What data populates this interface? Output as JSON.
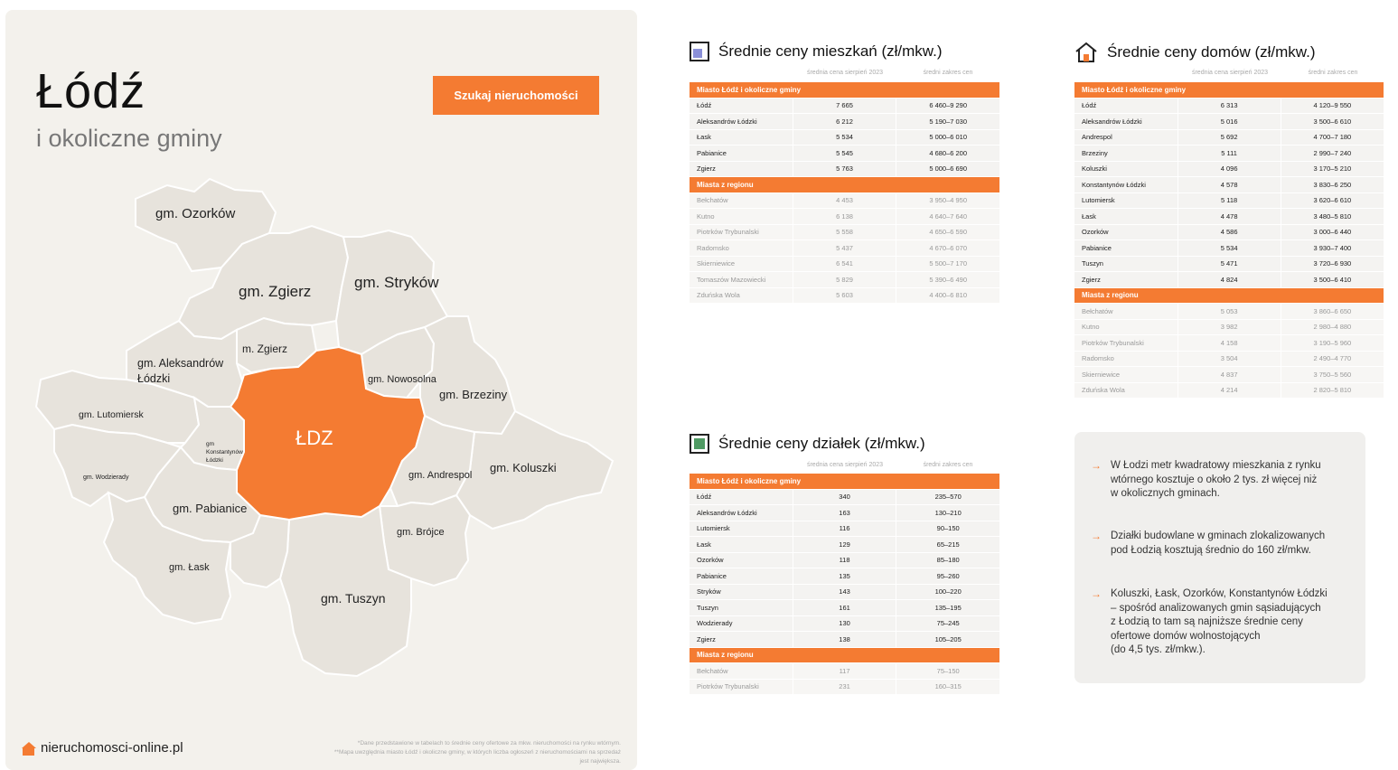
{
  "left": {
    "title": "Łódź",
    "subtitle": "i okoliczne gminy",
    "search_button": "Szukaj nieruchomości",
    "map_labels": {
      "ozorkow": "gm. Ozorków",
      "zgierz": "gm. Zgierz",
      "strykow": "gm. Stryków",
      "m_zgierz": "m. Zgierz",
      "aleks1": "gm. Aleksandrów",
      "aleks2": "Łódzki",
      "nowosolna": "gm. Nowosolna",
      "brzeziny": "gm. Brzeziny",
      "lutomiersk": "gm. Lutomiersk",
      "ldz": "ŁDZ",
      "konst1": "gm",
      "konst2": "Konstantynów",
      "konst3": "Łódzki",
      "wodzierady": "gm. Wodzierady",
      "koluszki": "gm. Koluszki",
      "andrespol": "gm. Andrespol",
      "pabianice": "gm. Pabianice",
      "brojce": "gm. Brójce",
      "lask": "gm. Łask",
      "tuszyn": "gm. Tuszyn"
    },
    "footnote1": "*Dane przedstawione w tabelach to średnie ceny ofertowe za mkw. nieruchomości na rynku wtórnym.",
    "footnote2": "**Mapa uwzględnia miasto Łódź i okoliczne gminy, w których liczba ogłoszeń z nieruchomościami na sprzedaż",
    "footnote3": "jest największa.",
    "brand": "nieruchomosci-online.pl"
  },
  "columns": {
    "avg": "średnia cena sierpień 2023",
    "range": "średni zakres cen"
  },
  "groups": {
    "local": "Miasto Łódź i okoliczne gminy",
    "region": "Miasta z regionu"
  },
  "apartments": {
    "title": "Średnie ceny mieszkań (zł/mkw.)",
    "local": [
      [
        "Łódź",
        "7 665",
        "6 460–9 290"
      ],
      [
        "Aleksandrów Łódzki",
        "6 212",
        "5 190–7 030"
      ],
      [
        "Łask",
        "5 534",
        "5 000–6 010"
      ],
      [
        "Pabianice",
        "5 545",
        "4 680–6 200"
      ],
      [
        "Zgierz",
        "5 763",
        "5 000–6 690"
      ]
    ],
    "region": [
      [
        "Bełchatów",
        "4 453",
        "3 950–4 950"
      ],
      [
        "Kutno",
        "6 138",
        "4 640–7 640"
      ],
      [
        "Piotrków Trybunalski",
        "5 558",
        "4 650–6 590"
      ],
      [
        "Radomsko",
        "5 437",
        "4 670–6 070"
      ],
      [
        "Skierniewice",
        "6 541",
        "5 500–7 170"
      ],
      [
        "Tomaszów Mazowiecki",
        "5 829",
        "5 390–6 490"
      ],
      [
        "Zduńska Wola",
        "5 603",
        "4 400–6 810"
      ]
    ]
  },
  "houses": {
    "title": "Średnie ceny domów (zł/mkw.)",
    "local": [
      [
        "Łódź",
        "6 313",
        "4 120–9 550"
      ],
      [
        "Aleksandrów Łódzki",
        "5 016",
        "3 500–6 610"
      ],
      [
        "Andrespol",
        "5 692",
        "4 700–7 180"
      ],
      [
        "Brzeziny",
        "5 111",
        "2 990–7 240"
      ],
      [
        "Koluszki",
        "4 096",
        "3 170–5 210"
      ],
      [
        "Konstantynów Łódzki",
        "4 578",
        "3 830–6 250"
      ],
      [
        "Lutomiersk",
        "5 118",
        "3 620–6 610"
      ],
      [
        "Łask",
        "4 478",
        "3 480–5 810"
      ],
      [
        "Ozorków",
        "4 586",
        "3 000–6 440"
      ],
      [
        "Pabianice",
        "5 534",
        "3 930–7 400"
      ],
      [
        "Tuszyn",
        "5 471",
        "3 720–6 930"
      ],
      [
        "Zgierz",
        "4 824",
        "3 500–6 410"
      ]
    ],
    "region": [
      [
        "Bełchatów",
        "5 053",
        "3 860–6 650"
      ],
      [
        "Kutno",
        "3 982",
        "2 980–4 880"
      ],
      [
        "Piotrków Trybunalski",
        "4 158",
        "3 190–5 960"
      ],
      [
        "Radomsko",
        "3 504",
        "2 490–4 770"
      ],
      [
        "Skierniewice",
        "4 837",
        "3 750–5 560"
      ],
      [
        "Zduńska Wola",
        "4 214",
        "2 820–5 810"
      ]
    ]
  },
  "plots": {
    "title": "Średnie ceny działek (zł/mkw.)",
    "local": [
      [
        "Łódź",
        "340",
        "235–570"
      ],
      [
        "Aleksandrów Łódzki",
        "163",
        "130–210"
      ],
      [
        "Lutomiersk",
        "116",
        "90–150"
      ],
      [
        "Łask",
        "129",
        "65–215"
      ],
      [
        "Ozorków",
        "118",
        "85–180"
      ],
      [
        "Pabianice",
        "135",
        "95–260"
      ],
      [
        "Stryków",
        "143",
        "100–220"
      ],
      [
        "Tuszyn",
        "161",
        "135–195"
      ],
      [
        "Wodzierady",
        "130",
        "75–245"
      ],
      [
        "Zgierz",
        "138",
        "105–205"
      ]
    ],
    "region": [
      [
        "Bełchatów",
        "117",
        "75–150"
      ],
      [
        "Piotrków Trybunalski",
        "231",
        "160–315"
      ]
    ]
  },
  "insights": [
    "W Łodzi metr kwadratowy mieszkania z rynku\nwtórnego kosztuje o około 2 tys. zł więcej niż\nw okolicznych gminach.",
    "Działki budowlane w gminach zlokalizowanych\npod Łodzią kosztują średnio do 160 zł/mkw.",
    "Koluszki, Łask, Ozorków, Konstantynów Łódzki\n– spośród analizowanych gmin sąsiadujących\nz Łodzią to tam są najniższe średnie ceny\nofertowe domów wolnostojących\n(do 4,5 tys. zł/mkw.)."
  ],
  "colors": {
    "accent": "#f47b32",
    "map_fill": "#e7e3dc",
    "panel": "#f3f1ec"
  }
}
